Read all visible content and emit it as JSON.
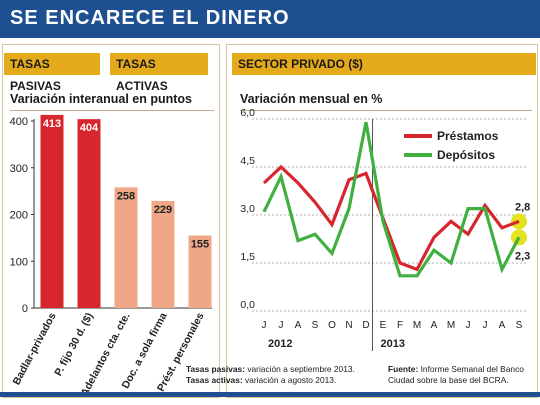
{
  "header": {
    "title": "SE ENCARECE EL DINERO",
    "color": "#1d4f91"
  },
  "tabs": {
    "pasivas": "TASAS PASIVAS",
    "activas": "TASAS ACTIVAS",
    "privado": "SECTOR PRIVADO ($)",
    "color": "#e4aa1c"
  },
  "chart_data": [
    {
      "type": "bar",
      "title": "Variación interanual en puntos",
      "categories": [
        "Badlar-privados",
        "P. fijo 30 d. ($)",
        "Adelantos cta. cte.",
        "Doc. a sola firma",
        "Prést. personales"
      ],
      "values": [
        413,
        404,
        258,
        229,
        155
      ],
      "data_labels": [
        "413",
        "404",
        "258",
        "229",
        "155"
      ],
      "bar_colors": [
        "#d7262e",
        "#d7262e",
        "#f0a788",
        "#f0a788",
        "#f0a788"
      ],
      "ylim": [
        0,
        400
      ],
      "yticks": [
        "0",
        "100",
        "200",
        "300",
        "400"
      ]
    },
    {
      "type": "line",
      "title": "Variación mensual en %",
      "x": [
        "J",
        "J",
        "A",
        "S",
        "O",
        "N",
        "D",
        "E",
        "F",
        "M",
        "A",
        "M",
        "J",
        "J",
        "A",
        "S"
      ],
      "year_labels": [
        "2012",
        "2013"
      ],
      "ylim": [
        0,
        6
      ],
      "yticks": [
        "0,0",
        "1,5",
        "3,0",
        "4,5",
        "6,0"
      ],
      "legend_position": "top-right",
      "series": [
        {
          "name": "Préstamos",
          "color": "#d7262e",
          "values": [
            4.0,
            4.5,
            4.0,
            3.4,
            2.7,
            4.1,
            4.3,
            2.9,
            1.5,
            1.3,
            2.3,
            2.8,
            2.4,
            3.3,
            2.6,
            2.8
          ]
        },
        {
          "name": "Depósitos",
          "color": "#3fb03f",
          "values": [
            3.1,
            4.2,
            2.2,
            2.4,
            1.8,
            3.2,
            5.9,
            2.8,
            1.1,
            1.1,
            1.9,
            1.5,
            3.2,
            3.2,
            1.3,
            2.3
          ]
        }
      ],
      "end_labels": [
        "2,8",
        "2,3"
      ],
      "highlight_color": "#e5e21f"
    }
  ],
  "footer": {
    "pasivas_label": "Tasas pasivas:",
    "pasivas_text": "variación a septiembre 2013.",
    "activas_label": "Tasas activas:",
    "activas_text": "variación a agosto 2013.",
    "fuente_label": "Fuente:",
    "fuente_text": "Informe Semanal del Banco Ciudad sobre la base del BCRA."
  }
}
